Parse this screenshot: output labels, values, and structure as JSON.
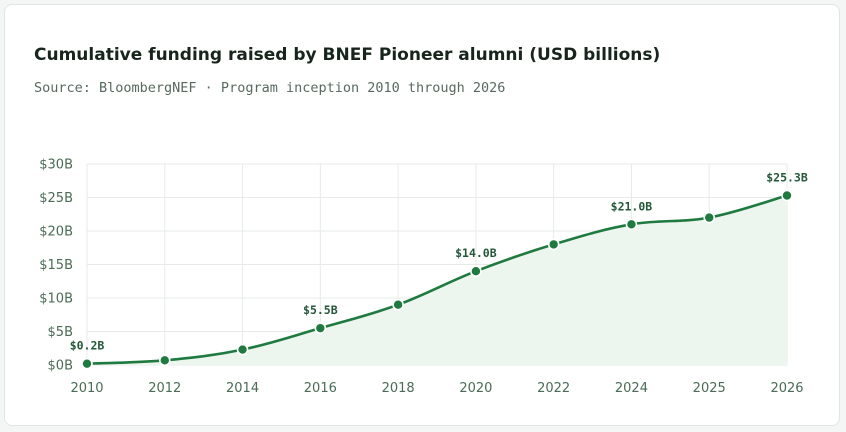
{
  "header": {
    "title": "Cumulative funding raised by BNEF Pioneer alumni (USD billions)",
    "subtitle": "Source: BloombergNEF · Program inception 2010 through 2026"
  },
  "colors": {
    "line": "#1e7a3f",
    "fill": "#ecf5ee",
    "grid": "#e6ebe7",
    "point_stroke": "#ffffff"
  },
  "chart_data": {
    "type": "line",
    "title": "Cumulative funding raised by BNEF Pioneer alumni (USD billions)",
    "subtitle": "Source: BloombergNEF · Program inception 2010 through 2026",
    "categories": [
      "2010",
      "2012",
      "2014",
      "2016",
      "2018",
      "2020",
      "2022",
      "2024",
      "2025",
      "2026"
    ],
    "series": [
      {
        "values": [
          0.2,
          0.7,
          2.3,
          5.5,
          9.0,
          14.0,
          18.0,
          21.0,
          22.0,
          25.3
        ]
      }
    ],
    "data_labels": [
      {
        "index": 0,
        "text": "$0.2B"
      },
      {
        "index": 3,
        "text": "$5.5B"
      },
      {
        "index": 5,
        "text": "$14.0B"
      },
      {
        "index": 7,
        "text": "$21.0B"
      },
      {
        "index": 9,
        "text": "$25.3B"
      }
    ],
    "yticks": [
      "$0B",
      "$5B",
      "$10B",
      "$15B",
      "$20B",
      "$25B",
      "$30B"
    ],
    "ylim": [
      0,
      30
    ],
    "grid": true,
    "legend": "none",
    "area_fill": true
  }
}
